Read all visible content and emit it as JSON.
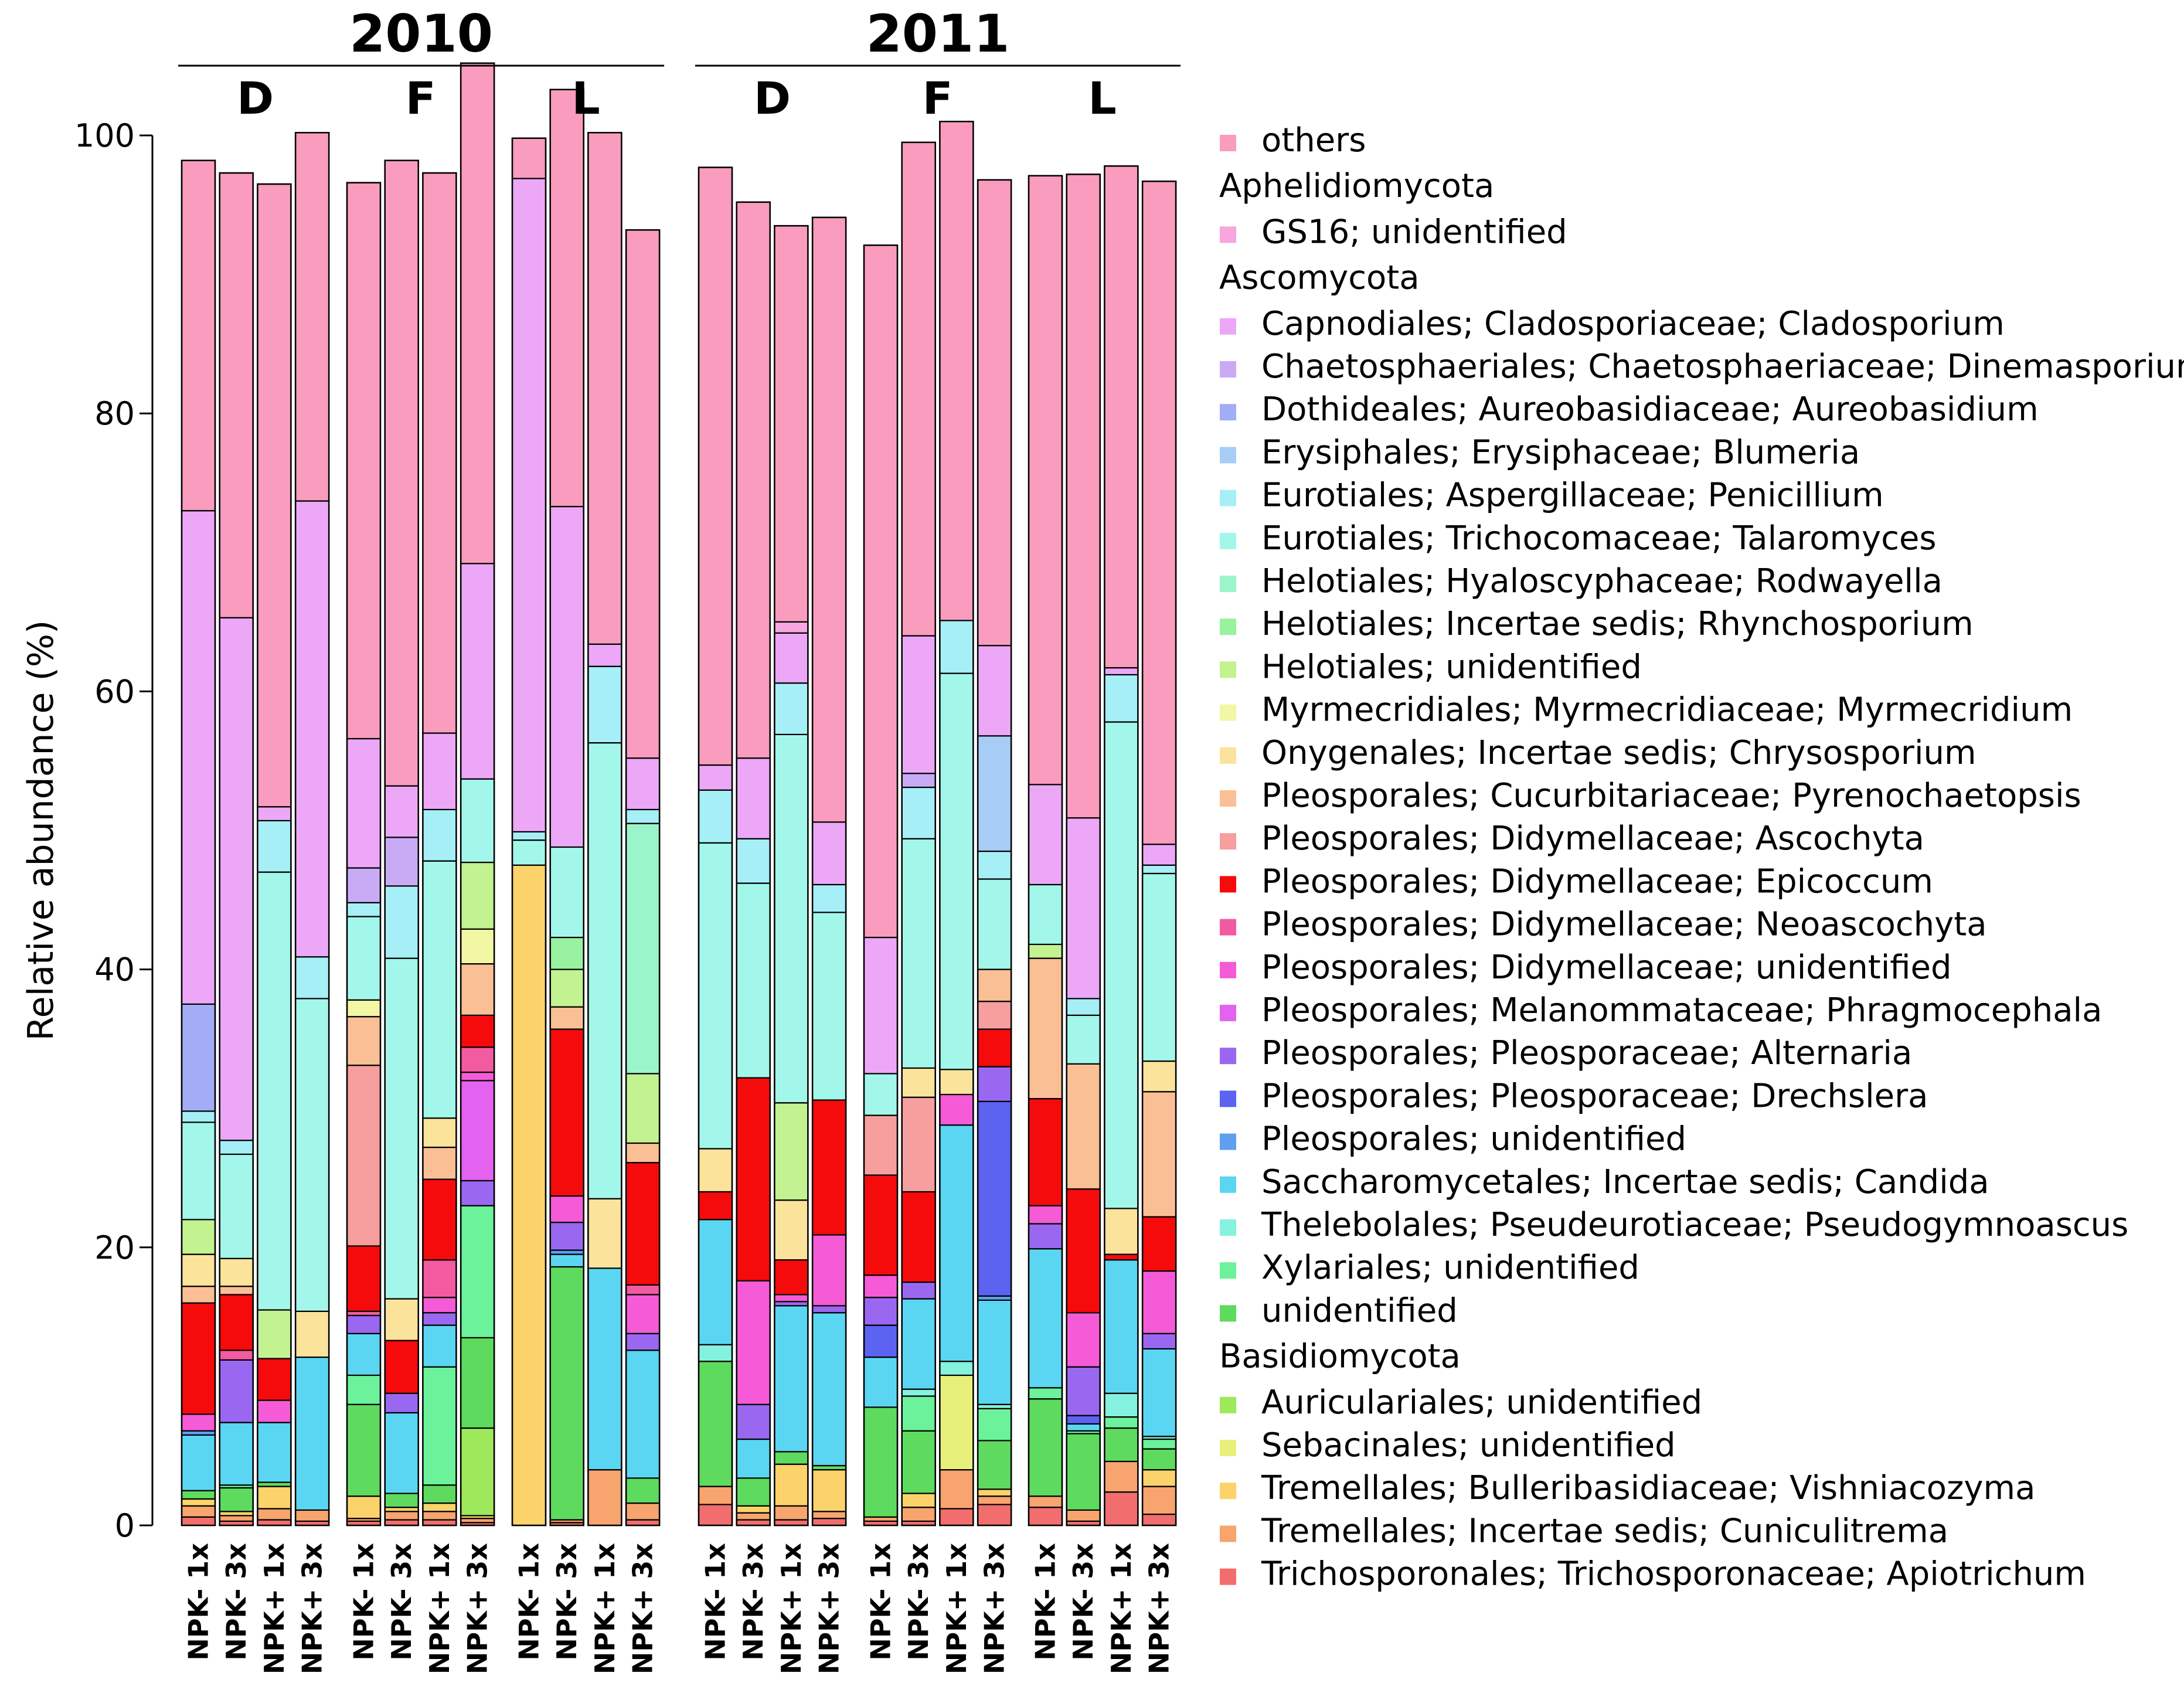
{
  "chart_data": {
    "type": "bar",
    "stacked": true,
    "title": "",
    "xlabel": "",
    "ylabel": "Relative abundance (%)",
    "ylim": [
      0,
      100
    ],
    "yticks": [
      0,
      20,
      40,
      60,
      80,
      100
    ],
    "years": [
      {
        "label": "2010",
        "sites": [
          {
            "label": "D"
          },
          {
            "label": "F"
          },
          {
            "label": "L"
          }
        ]
      },
      {
        "label": "2011",
        "sites": [
          {
            "label": "D"
          },
          {
            "label": "F"
          },
          {
            "label": "L"
          }
        ]
      }
    ],
    "sample_labels": [
      "NPK- 1x",
      "NPK- 3x",
      "NPK+ 1x",
      "NPK+ 3x"
    ],
    "categories": [
      "2010 D NPK- 1x",
      "2010 D NPK- 3x",
      "2010 D NPK+ 1x",
      "2010 D NPK+ 3x",
      "2010 F NPK- 1x",
      "2010 F NPK- 3x",
      "2010 F NPK+ 1x",
      "2010 F NPK+ 3x",
      "2010 L NPK- 1x",
      "2010 L NPK- 3x",
      "2010 L NPK+ 1x",
      "2010 L NPK+ 3x",
      "2011 D NPK- 1x",
      "2011 D NPK- 3x",
      "2011 D NPK+ 1x",
      "2011 D NPK+ 3x",
      "2011 F NPK- 1x",
      "2011 F NPK- 3x",
      "2011 F NPK+ 1x",
      "2011 F NPK+ 3x",
      "2011 L NPK- 1x",
      "2011 L NPK- 3x",
      "2011 L NPK+ 1x",
      "2011 L NPK+ 3x"
    ],
    "legend_groups": [
      {
        "label": "",
        "series_ids": [
          "others"
        ]
      },
      {
        "label": "Aphelidiomycota",
        "series_ids": [
          "gs16"
        ]
      },
      {
        "label": "Ascomycota",
        "series_ids": [
          "clado",
          "dinema",
          "aureo",
          "blum",
          "peni",
          "talaro",
          "rodw",
          "rhyncho",
          "helo_un",
          "myrme",
          "chryso",
          "pyreno",
          "ascoch",
          "epic",
          "neoasc",
          "didy_un",
          "phragmo",
          "altern",
          "drechs",
          "pleo_un",
          "candida",
          "pseudo",
          "xyl_un",
          "asco_un"
        ]
      },
      {
        "label": "Basidiomycota",
        "series_ids": [
          "auric",
          "sebac",
          "vishn",
          "cunic",
          "apiot"
        ]
      }
    ],
    "series": [
      {
        "id": "apiot",
        "name": "Trichosporonales; Trichosporonaceae; Apiotrichum",
        "color": "#f26e6e",
        "values": [
          0.6,
          0.3,
          0.4,
          0.3,
          0.3,
          0.4,
          0.4,
          0.2,
          0,
          0.2,
          0,
          0.4,
          1.5,
          0.4,
          0.4,
          0.5,
          0.3,
          0.3,
          1.2,
          1.5,
          1.3,
          0.3,
          2.4,
          0.8
        ]
      },
      {
        "id": "cunic",
        "name": "Tremellales; Incertae sedis; Cuniculitrema",
        "color": "#f7a46e",
        "values": [
          0.8,
          0.4,
          0.8,
          0.8,
          0.2,
          0.6,
          0.6,
          0.3,
          0,
          0.2,
          4,
          1.2,
          1.3,
          0.5,
          1,
          0.5,
          0.3,
          1,
          2.8,
          0.6,
          0.8,
          0.8,
          2.2,
          2
        ]
      },
      {
        "id": "vishn",
        "name": "Tremellales; Bulleribasidiaceae; Vishniacozyma",
        "color": "#fbd36a",
        "values": [
          0.5,
          0.3,
          1.6,
          0,
          1.6,
          0.3,
          0.6,
          0.2,
          47.5,
          0,
          0,
          0,
          0,
          0.5,
          3,
          3,
          0,
          1,
          0,
          0.5,
          0,
          0,
          0,
          1.2
        ]
      },
      {
        "id": "sebac",
        "name": "Sebacinales; unidentified",
        "color": "#e7f07a",
        "values": [
          0,
          0,
          0,
          0,
          0,
          0,
          0,
          0,
          0,
          0,
          0,
          0,
          0,
          0,
          0,
          0,
          0,
          0,
          6.8,
          0,
          0,
          0,
          0,
          0
        ]
      },
      {
        "id": "auric",
        "name": "Auriculariales; unidentified",
        "color": "#9ee85c",
        "values": [
          0,
          0,
          0,
          0,
          0,
          0,
          0,
          6.3,
          0,
          0,
          0,
          0,
          0,
          0,
          0,
          0,
          0,
          0,
          0,
          0,
          0,
          0,
          0,
          0
        ]
      },
      {
        "id": "asco_un",
        "name": "unidentified",
        "color": "#5edb5e",
        "values": [
          0.6,
          1.7,
          0.3,
          0,
          6.6,
          1,
          1.3,
          6.5,
          0,
          18.2,
          0,
          1.8,
          9,
          2,
          0.9,
          0.3,
          7.9,
          4.5,
          0,
          3.5,
          7,
          5.5,
          2.4,
          1.5
        ]
      },
      {
        "id": "xyl_un",
        "name": "Xylariales; unidentified",
        "color": "#6bf29b",
        "values": [
          0,
          0.2,
          0,
          0,
          2.1,
          0,
          8.5,
          9.5,
          0,
          0,
          0,
          0,
          0,
          0,
          0,
          0,
          0,
          2.5,
          0,
          2.3,
          0.8,
          0.2,
          0.8,
          0.7
        ]
      },
      {
        "id": "pseudo",
        "name": "Thelebolales; Pseudeurotiaceae; Pseudogymnoascus",
        "color": "#85f2df",
        "values": [
          0,
          0,
          0,
          0,
          0,
          0,
          0,
          0,
          0,
          0,
          0,
          0,
          1.2,
          0,
          0,
          0,
          0,
          0.5,
          1,
          0.3,
          0,
          0,
          1.7,
          0.2
        ]
      },
      {
        "id": "candida",
        "name": "Saccharomycetales; Incertae sedis; Candida",
        "color": "#5bd6f2",
        "values": [
          4,
          4.5,
          4.3,
          11,
          3,
          5.8,
          3,
          0,
          0,
          0.9,
          14.5,
          9.2,
          9,
          2.8,
          10.5,
          11,
          3.6,
          6.5,
          17,
          7.5,
          10,
          0.5,
          9.6,
          6.3
        ]
      },
      {
        "id": "pleo_un",
        "name": "Pleosporales; unidentified",
        "color": "#5e9ff2",
        "values": [
          0.3,
          0,
          0,
          0,
          0,
          0,
          0,
          0,
          0,
          0.3,
          0,
          0,
          0,
          0,
          0,
          0,
          0,
          0,
          0,
          0.3,
          0,
          0,
          0,
          0
        ]
      },
      {
        "id": "drechs",
        "name": "Pleosporales; Pleosporaceae; Drechslera",
        "color": "#5b63f0",
        "values": [
          0,
          0,
          0,
          0,
          0,
          0,
          0,
          0,
          0,
          0,
          0,
          0,
          0,
          0,
          0,
          0,
          2.3,
          0,
          0,
          14,
          0,
          0.6,
          0,
          0
        ]
      },
      {
        "id": "altern",
        "name": "Pleosporales; Pleosporaceae; Alternaria",
        "color": "#9a68f0",
        "values": [
          0,
          4.5,
          0,
          0,
          1.3,
          1.4,
          0.9,
          1.8,
          0,
          2,
          0,
          1.2,
          0,
          2.5,
          0.3,
          0.5,
          2,
          1.2,
          0,
          2.5,
          1.8,
          3.5,
          0,
          1.1
        ]
      },
      {
        "id": "phragmo",
        "name": "Pleosporales; Melanommataceae; Phragmocephala",
        "color": "#e362ef",
        "values": [
          0,
          0,
          0,
          0,
          0,
          0,
          0,
          7.2,
          0,
          0,
          0,
          0,
          0,
          0,
          0,
          0,
          0,
          0,
          0,
          0,
          0,
          0,
          0,
          0
        ]
      },
      {
        "id": "didy_un",
        "name": "Pleosporales; Didymellaceae; unidentified",
        "color": "#f55bd6",
        "values": [
          1.2,
          0,
          1.6,
          0,
          0,
          0,
          1.1,
          0.6,
          0,
          1.9,
          0,
          2.8,
          0,
          8.9,
          0.5,
          5.1,
          1.6,
          0,
          2.2,
          0,
          1.3,
          3.9,
          0,
          4.5
        ]
      },
      {
        "id": "neoasc",
        "name": "Pleosporales; Didymellaceae; Neoascochyta",
        "color": "#f25b9f",
        "values": [
          0,
          0.7,
          0,
          0,
          0.3,
          0,
          2.7,
          1.8,
          0,
          0,
          0,
          0.7,
          0,
          0,
          0,
          0,
          0,
          0,
          0,
          0,
          0,
          0,
          0,
          0
        ]
      },
      {
        "id": "epic",
        "name": "Pleosporales; Didymellaceae; Epicoccum",
        "color": "#f50b0b",
        "values": [
          8,
          4,
          3,
          0,
          4.7,
          3.8,
          5.8,
          2.3,
          0,
          12,
          0,
          8.8,
          2,
          14.6,
          2.5,
          9.7,
          7.2,
          6.5,
          0,
          2.7,
          7.7,
          8.9,
          0.4,
          3.9
        ]
      },
      {
        "id": "ascoch",
        "name": "Pleosporales; Didymellaceae; Ascochyta",
        "color": "#f79e9e",
        "values": [
          0,
          0,
          0,
          0,
          13,
          0,
          0,
          0,
          0,
          0,
          0,
          0,
          0,
          0,
          0,
          0,
          4.3,
          6.8,
          0,
          2,
          0,
          0,
          0,
          0
        ]
      },
      {
        "id": "pyreno",
        "name": "Pleosporales; Cucurbitariaceae; Pyrenochaetopsis",
        "color": "#fbbf96",
        "values": [
          1.2,
          0.6,
          0,
          0,
          3.5,
          0,
          2.3,
          3.7,
          0,
          1.6,
          0,
          1.4,
          0,
          0,
          0,
          0,
          0,
          0,
          0,
          2.3,
          10.1,
          9,
          0,
          9
        ]
      },
      {
        "id": "chryso",
        "name": "Onygenales; Incertae sedis; Chrysosporium",
        "color": "#fbe39b",
        "values": [
          2.3,
          2,
          0,
          3.3,
          0,
          3,
          2.1,
          0,
          0,
          0,
          5,
          0,
          3.1,
          0,
          4.3,
          0,
          0,
          2.1,
          1.8,
          0,
          0,
          0,
          3.3,
          2.2
        ]
      },
      {
        "id": "myrme",
        "name": "Myrmecridiales; Myrmecridiaceae; Myrmecridium",
        "color": "#f2f7a3",
        "values": [
          0,
          0,
          0,
          0,
          1.2,
          0,
          0,
          2.5,
          0,
          0,
          0,
          0,
          0,
          0,
          0,
          0,
          0,
          0,
          0,
          0,
          0,
          0,
          0,
          0
        ]
      },
      {
        "id": "helo_un",
        "name": "Helotiales; unidentified",
        "color": "#c3f290",
        "values": [
          2.5,
          0,
          3.5,
          0,
          0,
          0,
          0,
          4.8,
          0,
          2.7,
          0,
          5,
          0,
          0,
          7,
          0,
          0,
          0,
          0,
          0,
          1,
          0,
          0,
          0
        ]
      },
      {
        "id": "rhyncho",
        "name": "Helotiales; Incertae sedis; Rhynchosporium",
        "color": "#98f2a0",
        "values": [
          0,
          0,
          0,
          0,
          0,
          0,
          0,
          0,
          0,
          2.3,
          0,
          0,
          0,
          0,
          0,
          0,
          0,
          0,
          0,
          0,
          0,
          0,
          0,
          0
        ]
      },
      {
        "id": "rodw",
        "name": "Helotiales; Hyaloscyphaceae; Rodwayella",
        "color": "#9af5cb",
        "values": [
          0,
          0,
          0,
          0,
          0,
          0,
          0,
          0,
          0,
          0,
          0,
          18,
          0,
          0,
          0,
          0,
          0,
          0,
          0,
          0,
          0,
          0,
          0,
          0
        ]
      },
      {
        "id": "talaro",
        "name": "Eurotiales; Trichocomaceae; Talaromyces",
        "color": "#a2f7ea",
        "values": [
          7,
          7.5,
          31.5,
          22.5,
          6,
          24.5,
          18.5,
          6,
          1.8,
          6.5,
          32.8,
          0,
          22,
          14,
          26.5,
          13.5,
          3,
          16.5,
          28.5,
          6.5,
          4.3,
          3.5,
          35,
          13.5
        ]
      },
      {
        "id": "peni",
        "name": "Eurotiales; Aspergillaceae; Penicillium",
        "color": "#a6eff7",
        "values": [
          0.8,
          1,
          3.7,
          3,
          1,
          5.2,
          3.7,
          0,
          0.6,
          0,
          5.5,
          1,
          3.8,
          3.2,
          3.7,
          2,
          0,
          3.7,
          3.8,
          2,
          0,
          1.2,
          3.4,
          0.6
        ]
      },
      {
        "id": "blum",
        "name": "Erysiphales; Erysiphaceae; Blumeria",
        "color": "#a7cdf7",
        "values": [
          0,
          0,
          0,
          0,
          0,
          0,
          0,
          0,
          0,
          0,
          0,
          0,
          0,
          0,
          0,
          0,
          0,
          0,
          0,
          8.3,
          0,
          0,
          0,
          0
        ]
      },
      {
        "id": "aureo",
        "name": "Dothideales; Aureobasidiaceae; Aureobasidium",
        "color": "#a3adf7",
        "values": [
          7.7,
          0,
          0,
          0,
          0,
          0,
          0,
          0,
          0,
          0,
          0,
          0,
          0,
          0,
          0,
          0,
          0,
          0,
          0,
          0,
          0,
          0,
          0,
          0
        ]
      },
      {
        "id": "dinema",
        "name": "Chaetosphaeriales; Chaetosphaeriaceae; Dinemasporium",
        "color": "#c9abf5",
        "values": [
          0,
          0,
          0,
          0,
          2.5,
          3.5,
          0,
          0,
          0,
          0,
          0,
          0,
          0,
          0,
          0,
          0,
          0,
          1,
          0,
          0,
          0,
          0,
          0,
          0
        ]
      },
      {
        "id": "clado",
        "name": "Capnodiales; Cladosporiaceae; Cladosporium",
        "color": "#eca8f7",
        "values": [
          35.5,
          37.6,
          1,
          32.8,
          9.3,
          3.7,
          5.5,
          15.5,
          47,
          24.5,
          1.6,
          3.7,
          1.8,
          5.8,
          3.6,
          4.5,
          9.8,
          9.9,
          0,
          6.5,
          7.2,
          13,
          0.5,
          1.5
        ]
      },
      {
        "id": "gs16",
        "name": "GS16; unidentified",
        "color": "#f7a6df",
        "values": [
          0,
          0,
          0,
          0,
          0,
          0,
          0,
          0,
          0,
          0,
          0,
          0,
          0,
          0,
          0.8,
          0,
          0,
          0,
          0,
          0,
          0,
          0,
          0,
          0
        ]
      },
      {
        "id": "others",
        "name": "others",
        "color": "#f99cbd",
        "values": [
          25.2,
          32,
          44.8,
          26.5,
          40,
          45,
          40.3,
          36,
          2.9,
          30,
          36.8,
          38,
          43,
          40,
          28.5,
          43.5,
          49.8,
          35.5,
          35.9,
          33.5,
          43.8,
          46.3,
          36.1,
          47.7
        ]
      }
    ]
  }
}
